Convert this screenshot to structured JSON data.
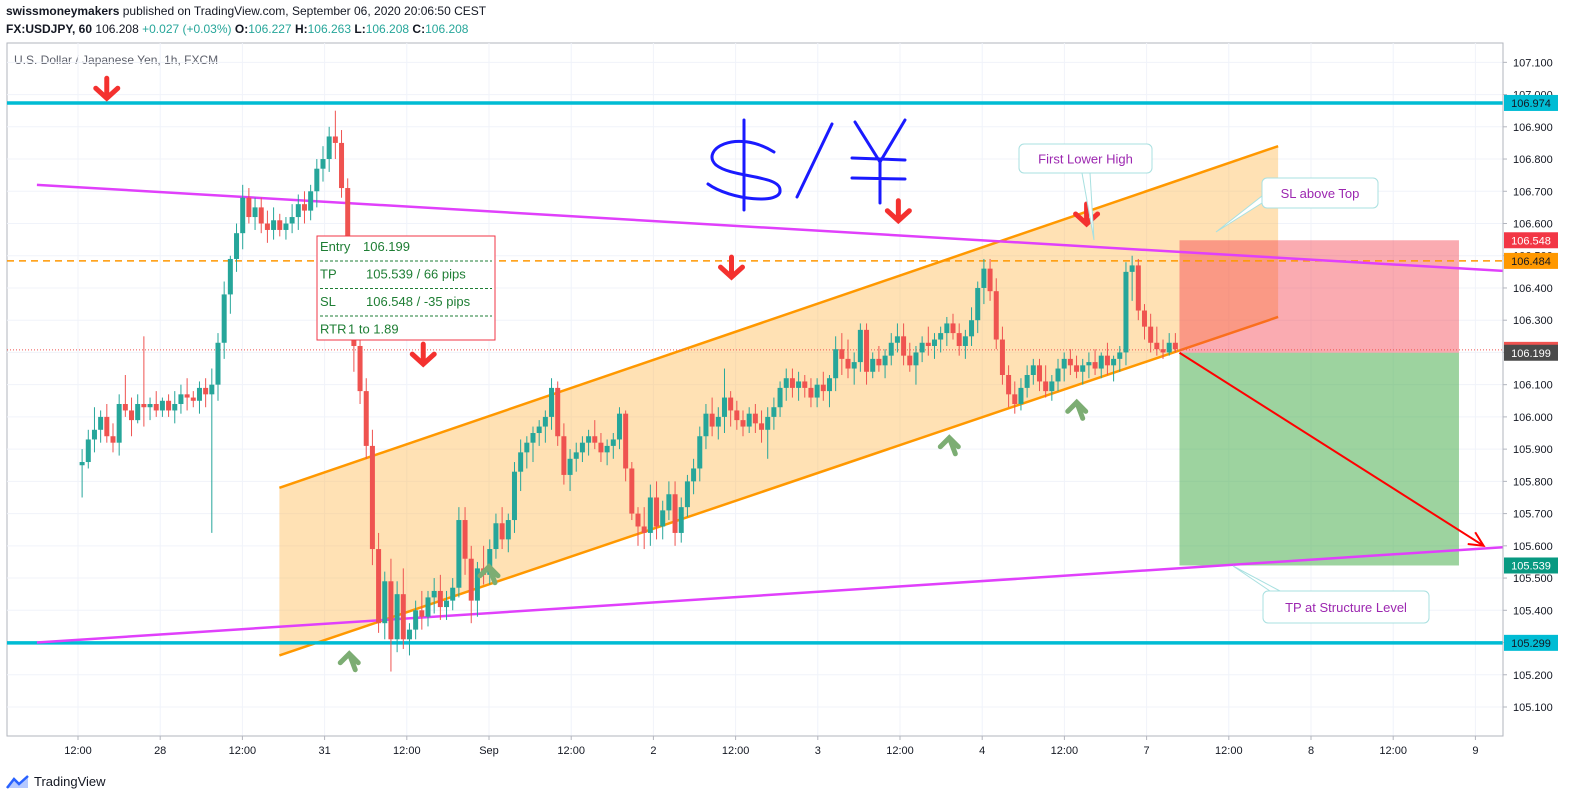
{
  "header": {
    "author": "swissmoneymakers",
    "published_text": "published on TradingView.com, September 06, 2020 20:06:50 CEST",
    "symbol": "FX:USDJPY, 60",
    "last": "106.208",
    "change": "+0.027 (+0.03%)",
    "o_label": "O:",
    "o": "106.227",
    "h_label": "H:",
    "h": "106.263",
    "l_label": "L:",
    "l": "106.208",
    "c_label": "C:",
    "c": "106.208"
  },
  "footer": {
    "brand": "TradingView"
  },
  "chart_data": {
    "type": "candlestick",
    "title": "U.S. Dollar / Japanese Yen, 1h, FXCM",
    "ylim": [
      105.01,
      107.16
    ],
    "y_ticks": [
      "105.100",
      "105.200",
      "105.300",
      "105.400",
      "105.500",
      "105.600",
      "105.700",
      "105.800",
      "105.900",
      "106.000",
      "106.100",
      "106.200",
      "106.300",
      "106.400",
      "106.500",
      "106.600",
      "106.700",
      "106.800",
      "106.900",
      "107.000",
      "107.100"
    ],
    "x_ticks": [
      "12:00",
      "28",
      "12:00",
      "31",
      "12:00",
      "Sep",
      "12:00",
      "2",
      "12:00",
      "3",
      "12:00",
      "4",
      "12:00",
      "7",
      "12:00",
      "8",
      "12:00",
      "9"
    ],
    "price_badges": [
      {
        "value": "106.974",
        "color": "#00bcd4",
        "text_color": "#131722"
      },
      {
        "value": "106.548",
        "color": "#f23645",
        "text_color": "#ffffff"
      },
      {
        "value": "106.484",
        "color": "#ff9800",
        "text_color": "#131722"
      },
      {
        "value": "106.208",
        "color": "#ef5350",
        "text_color": "#ffffff"
      },
      {
        "value": "106.199",
        "color": "#4a4a4a",
        "text_color": "#ffffff"
      },
      {
        "value": "105.539",
        "color": "#089981",
        "text_color": "#ffffff"
      },
      {
        "value": "105.299",
        "color": "#00bcd4",
        "text_color": "#131722"
      }
    ],
    "horizontal_levels": [
      {
        "value": 106.974,
        "color": "#00bcd4",
        "style": "solid"
      },
      {
        "value": 105.299,
        "color": "#00bcd4",
        "style": "solid"
      },
      {
        "value": 106.484,
        "color": "#ff9800",
        "style": "dashed"
      },
      {
        "value": 106.208,
        "color": "#ef5350",
        "style": "dotted"
      }
    ],
    "trend_lines": [
      {
        "name": "resistance",
        "color": "#e040fb",
        "from": [
          -0.5,
          106.72
        ],
        "to": [
          18.2,
          106.44
        ]
      },
      {
        "name": "support",
        "color": "#e040fb",
        "from": [
          -0.5,
          105.3
        ],
        "to": [
          18.2,
          105.61
        ]
      }
    ],
    "channel": {
      "color": "#ff9800",
      "fill": "rgba(255,183,77,0.42)",
      "upper": [
        [
          2.45,
          105.78
        ],
        [
          14.6,
          106.84
        ]
      ],
      "lower": [
        [
          2.45,
          105.26
        ],
        [
          14.6,
          106.31
        ]
      ]
    },
    "position": {
      "type": "short",
      "entry": 106.199,
      "stop": 106.548,
      "target": 105.539,
      "x_start": 13.4,
      "x_end": 16.8,
      "profit_color": "rgba(76,175,80,0.55)",
      "loss_color": "rgba(242,54,69,0.42)"
    },
    "trade_box": {
      "lines": [
        {
          "label": "Entry",
          "value": "106.199"
        },
        {
          "label": "TP",
          "value": "105.539 / 66 pips"
        },
        {
          "label": "SL",
          "value": "106.548 / -35 pips"
        },
        {
          "label": "RTR",
          "value": "1 to 1.89"
        }
      ]
    },
    "annotations": [
      {
        "text": "First Lower High",
        "x": 12.8,
        "y": 106.845
      },
      {
        "text": "SL above Top",
        "x": 15.8,
        "y": 106.7
      },
      {
        "text": "TP at Structure Level",
        "x": 15.8,
        "y": 105.44
      }
    ],
    "handwriting": "$/¥",
    "projection_arrow": {
      "from": [
        13.4,
        106.199
      ],
      "to": [
        17.1,
        105.6
      ],
      "color": "#ff0000"
    },
    "candles": [
      [
        105.85,
        105.9,
        105.75,
        105.86
      ],
      [
        105.86,
        105.96,
        105.84,
        105.93
      ],
      [
        105.93,
        106.03,
        105.89,
        105.96
      ],
      [
        105.96,
        106.02,
        105.92,
        106.0
      ],
      [
        106.0,
        106.04,
        105.92,
        105.94
      ],
      [
        105.94,
        105.98,
        105.89,
        105.92
      ],
      [
        105.92,
        106.07,
        105.88,
        106.04
      ],
      [
        106.04,
        106.13,
        106.0,
        106.02
      ],
      [
        106.02,
        106.06,
        105.94,
        105.99
      ],
      [
        105.99,
        106.07,
        105.98,
        106.04
      ],
      [
        106.04,
        106.25,
        105.97,
        106.03
      ],
      [
        106.03,
        106.06,
        105.99,
        106.04
      ],
      [
        106.04,
        106.08,
        106.0,
        106.02
      ],
      [
        106.02,
        106.06,
        106.0,
        106.05
      ],
      [
        106.05,
        106.07,
        106.0,
        106.02
      ],
      [
        106.02,
        106.08,
        105.98,
        106.04
      ],
      [
        106.04,
        106.1,
        106.01,
        106.07
      ],
      [
        106.07,
        106.12,
        106.02,
        106.06
      ],
      [
        106.06,
        106.08,
        106.03,
        106.05
      ],
      [
        106.05,
        106.11,
        106.01,
        106.09
      ],
      [
        106.09,
        106.12,
        106.03,
        106.07
      ],
      [
        106.07,
        106.15,
        105.64,
        106.1
      ],
      [
        106.1,
        106.26,
        106.05,
        106.23
      ],
      [
        106.23,
        106.42,
        106.18,
        106.38
      ],
      [
        106.38,
        106.5,
        106.32,
        106.49
      ],
      [
        106.49,
        106.6,
        106.45,
        106.57
      ],
      [
        106.57,
        106.72,
        106.52,
        106.68
      ],
      [
        106.68,
        106.71,
        106.6,
        106.62
      ],
      [
        106.62,
        106.68,
        106.58,
        106.65
      ],
      [
        106.65,
        106.68,
        106.57,
        106.6
      ],
      [
        106.6,
        106.64,
        106.54,
        106.58
      ],
      [
        106.58,
        106.65,
        106.55,
        106.61
      ],
      [
        106.61,
        106.63,
        106.56,
        106.58
      ],
      [
        106.58,
        106.62,
        106.55,
        106.6
      ],
      [
        106.6,
        106.66,
        106.57,
        106.62
      ],
      [
        106.62,
        106.69,
        106.58,
        106.66
      ],
      [
        106.66,
        106.7,
        106.6,
        106.64
      ],
      [
        106.64,
        106.72,
        106.61,
        106.7
      ],
      [
        106.7,
        106.8,
        106.65,
        106.77
      ],
      [
        106.77,
        106.84,
        106.73,
        106.8
      ],
      [
        106.8,
        106.9,
        106.76,
        106.87
      ],
      [
        106.87,
        106.95,
        106.8,
        106.85
      ],
      [
        106.85,
        106.89,
        106.68,
        106.71
      ],
      [
        106.71,
        106.74,
        106.26,
        106.32
      ],
      [
        106.32,
        106.36,
        106.14,
        106.22
      ],
      [
        106.22,
        106.26,
        106.04,
        106.08
      ],
      [
        106.08,
        106.12,
        105.87,
        105.91
      ],
      [
        105.91,
        105.96,
        105.54,
        105.59
      ],
      [
        105.59,
        105.64,
        105.33,
        105.36
      ],
      [
        105.36,
        105.52,
        105.31,
        105.49
      ],
      [
        105.49,
        105.56,
        105.21,
        105.31
      ],
      [
        105.31,
        105.49,
        105.27,
        105.45
      ],
      [
        105.45,
        105.53,
        105.28,
        105.31
      ],
      [
        105.31,
        105.36,
        105.26,
        105.34
      ],
      [
        105.34,
        105.43,
        105.31,
        105.4
      ],
      [
        105.4,
        105.46,
        105.34,
        105.38
      ],
      [
        105.38,
        105.46,
        105.35,
        105.44
      ],
      [
        105.44,
        105.5,
        105.39,
        105.46
      ],
      [
        105.46,
        105.51,
        105.37,
        105.41
      ],
      [
        105.41,
        105.46,
        105.37,
        105.43
      ],
      [
        105.43,
        105.5,
        105.4,
        105.47
      ],
      [
        105.47,
        105.72,
        105.44,
        105.68
      ],
      [
        105.68,
        105.72,
        105.51,
        105.56
      ],
      [
        105.56,
        105.6,
        105.36,
        105.43
      ],
      [
        105.43,
        105.55,
        105.38,
        105.53
      ],
      [
        105.53,
        105.6,
        105.48,
        105.51
      ],
      [
        105.51,
        105.62,
        105.48,
        105.59
      ],
      [
        105.59,
        105.7,
        105.56,
        105.67
      ],
      [
        105.67,
        105.72,
        105.59,
        105.62
      ],
      [
        105.62,
        105.7,
        105.58,
        105.68
      ],
      [
        105.68,
        105.86,
        105.64,
        105.83
      ],
      [
        105.83,
        105.93,
        105.77,
        105.89
      ],
      [
        105.89,
        105.94,
        105.84,
        105.92
      ],
      [
        105.92,
        105.97,
        105.86,
        105.95
      ],
      [
        105.95,
        105.99,
        105.91,
        105.97
      ],
      [
        105.97,
        106.02,
        105.92,
        106.0
      ],
      [
        106.0,
        106.12,
        105.96,
        106.09
      ],
      [
        106.09,
        106.11,
        105.91,
        105.94
      ],
      [
        105.94,
        105.98,
        105.79,
        105.82
      ],
      [
        105.82,
        105.9,
        105.77,
        105.87
      ],
      [
        105.87,
        105.92,
        105.83,
        105.89
      ],
      [
        105.89,
        105.94,
        105.86,
        105.92
      ],
      [
        105.92,
        105.96,
        105.88,
        105.94
      ],
      [
        105.94,
        105.99,
        105.9,
        105.92
      ],
      [
        105.92,
        105.95,
        105.86,
        105.89
      ],
      [
        105.89,
        105.93,
        105.85,
        105.91
      ],
      [
        105.91,
        105.95,
        105.87,
        105.93
      ],
      [
        105.93,
        106.03,
        105.9,
        106.01
      ],
      [
        106.01,
        106.02,
        105.8,
        105.84
      ],
      [
        105.84,
        105.86,
        105.68,
        105.7
      ],
      [
        105.7,
        105.72,
        105.6,
        105.66
      ],
      [
        105.66,
        105.72,
        105.59,
        105.64
      ],
      [
        105.64,
        105.79,
        105.6,
        105.75
      ],
      [
        105.75,
        105.8,
        105.62,
        105.66
      ],
      [
        105.66,
        105.74,
        105.62,
        105.71
      ],
      [
        105.71,
        105.8,
        105.68,
        105.76
      ],
      [
        105.76,
        105.8,
        105.6,
        105.64
      ],
      [
        105.64,
        105.75,
        105.61,
        105.72
      ],
      [
        105.72,
        105.82,
        105.69,
        105.8
      ],
      [
        105.8,
        105.87,
        105.76,
        105.84
      ],
      [
        105.84,
        105.97,
        105.8,
        105.94
      ],
      [
        105.94,
        106.04,
        105.9,
        106.01
      ],
      [
        106.01,
        106.06,
        105.94,
        105.97
      ],
      [
        105.97,
        106.03,
        105.93,
        106.0
      ],
      [
        106.0,
        106.15,
        105.95,
        106.06
      ],
      [
        106.06,
        106.08,
        105.97,
        106.02
      ],
      [
        106.02,
        106.05,
        105.96,
        105.99
      ],
      [
        105.99,
        106.02,
        105.94,
        105.97
      ],
      [
        105.97,
        106.03,
        105.95,
        106.01
      ],
      [
        106.01,
        106.04,
        105.95,
        105.98
      ],
      [
        105.98,
        106.02,
        105.92,
        105.96
      ],
      [
        105.96,
        106.03,
        105.87,
        106.0
      ],
      [
        106.0,
        106.06,
        105.96,
        106.03
      ],
      [
        106.03,
        106.11,
        106.0,
        106.09
      ],
      [
        106.09,
        106.15,
        106.05,
        106.12
      ],
      [
        106.12,
        106.15,
        106.06,
        106.09
      ],
      [
        106.09,
        106.14,
        106.05,
        106.11
      ],
      [
        106.11,
        106.13,
        106.06,
        106.09
      ],
      [
        106.09,
        106.12,
        106.03,
        106.06
      ],
      [
        106.06,
        106.12,
        106.03,
        106.1
      ],
      [
        106.1,
        106.14,
        106.05,
        106.08
      ],
      [
        106.08,
        106.13,
        106.03,
        106.12
      ],
      [
        106.12,
        106.25,
        106.08,
        106.21
      ],
      [
        106.21,
        106.26,
        106.13,
        106.18
      ],
      [
        106.18,
        106.24,
        106.12,
        106.15
      ],
      [
        106.15,
        106.2,
        106.1,
        106.17
      ],
      [
        106.17,
        106.29,
        106.14,
        106.27
      ],
      [
        106.27,
        106.29,
        106.1,
        106.14
      ],
      [
        106.14,
        106.2,
        106.12,
        106.18
      ],
      [
        106.18,
        106.22,
        106.14,
        106.16
      ],
      [
        106.16,
        106.21,
        106.12,
        106.19
      ],
      [
        106.19,
        106.26,
        106.16,
        106.23
      ],
      [
        106.23,
        106.29,
        106.2,
        106.25
      ],
      [
        106.25,
        106.29,
        106.16,
        106.19
      ],
      [
        106.19,
        106.23,
        106.14,
        106.16
      ],
      [
        106.16,
        106.22,
        106.1,
        106.2
      ],
      [
        106.2,
        106.25,
        106.17,
        106.23
      ],
      [
        106.23,
        106.28,
        106.19,
        106.22
      ],
      [
        106.22,
        106.26,
        106.18,
        106.24
      ],
      [
        106.24,
        106.28,
        106.2,
        106.26
      ],
      [
        106.26,
        106.31,
        106.22,
        106.29
      ],
      [
        106.29,
        106.32,
        106.24,
        106.26
      ],
      [
        106.26,
        106.29,
        106.19,
        106.22
      ],
      [
        106.22,
        106.27,
        106.18,
        106.25
      ],
      [
        106.25,
        106.34,
        106.22,
        106.3
      ],
      [
        106.3,
        106.42,
        106.26,
        106.4
      ],
      [
        106.4,
        106.49,
        106.35,
        106.46
      ],
      [
        106.46,
        106.49,
        106.36,
        106.39
      ],
      [
        106.39,
        106.43,
        106.21,
        106.24
      ],
      [
        106.24,
        106.28,
        106.1,
        106.13
      ],
      [
        106.13,
        106.16,
        106.03,
        106.07
      ],
      [
        106.07,
        106.11,
        106.01,
        106.04
      ],
      [
        106.04,
        106.12,
        106.02,
        106.09
      ],
      [
        106.09,
        106.16,
        106.06,
        106.13
      ],
      [
        106.13,
        106.18,
        106.1,
        106.16
      ],
      [
        106.16,
        106.18,
        106.08,
        106.11
      ],
      [
        106.11,
        106.16,
        106.06,
        106.08
      ],
      [
        106.08,
        106.13,
        106.05,
        106.11
      ],
      [
        106.11,
        106.18,
        106.08,
        106.15
      ],
      [
        106.15,
        106.2,
        106.11,
        106.18
      ],
      [
        106.18,
        106.21,
        106.13,
        106.16
      ],
      [
        106.16,
        106.19,
        106.12,
        106.14
      ],
      [
        106.14,
        106.18,
        106.1,
        106.16
      ],
      [
        106.16,
        106.2,
        106.12,
        106.17
      ],
      [
        106.17,
        106.21,
        106.13,
        106.15
      ],
      [
        106.15,
        106.2,
        106.12,
        106.19
      ],
      [
        106.19,
        106.23,
        106.13,
        106.16
      ],
      [
        106.16,
        106.19,
        106.11,
        106.18
      ],
      [
        106.18,
        106.22,
        106.14,
        106.2
      ],
      [
        106.2,
        106.48,
        106.16,
        106.45
      ],
      [
        106.45,
        106.5,
        106.36,
        106.47
      ],
      [
        106.47,
        106.49,
        106.3,
        106.33
      ],
      [
        106.33,
        106.35,
        106.24,
        106.28
      ],
      [
        106.28,
        106.32,
        106.2,
        106.23
      ],
      [
        106.23,
        106.28,
        106.19,
        106.21
      ],
      [
        106.21,
        106.24,
        106.18,
        106.2
      ],
      [
        106.2,
        106.26,
        106.19,
        106.23
      ],
      [
        106.23,
        106.26,
        106.2,
        106.21
      ]
    ]
  }
}
